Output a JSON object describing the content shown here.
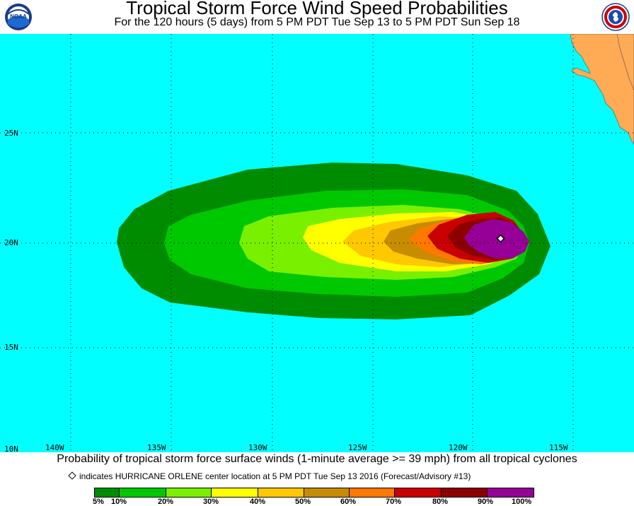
{
  "header": {
    "title": "Tropical Storm Force Wind Speed Probabilities",
    "subtitle": "For the 120 hours (5 days) from 5 PM PDT Tue Sep 13 to 5 PM PDT Sun Sep 18",
    "left_logo": "noaa-logo",
    "left_logo_text": "NOAA",
    "right_logo": "national-weather-service-logo"
  },
  "map": {
    "ocean_color": "#00ffff",
    "land_color": "#ffaa55",
    "lat_labels": [
      "25N",
      "20N",
      "15N",
      "10N"
    ],
    "lon_labels": [
      "140W",
      "135W",
      "130W",
      "125W",
      "120W",
      "115W"
    ],
    "storm_center": {
      "lat": "20.2N",
      "lon": "118.1W"
    }
  },
  "footer": {
    "caption": "Probability of tropical storm force surface winds (1-minute average >= 39 mph) from all tropical cyclones",
    "center_note": "indicates HURRICANE ORLENE center location at 5 PM PDT Tue Sep 13 2016 (Forecast/Advisory #13)"
  },
  "legend": {
    "labels": [
      "5%",
      "10%",
      "20%",
      "30%",
      "40%",
      "50%",
      "60%",
      "70%",
      "80%",
      "90%",
      "100%"
    ],
    "colors": [
      "#008c00",
      "#00c800",
      "#78f000",
      "#ffff00",
      "#ffc800",
      "#c88c00",
      "#ff7800",
      "#c80000",
      "#8c0000",
      "#960096"
    ]
  }
}
